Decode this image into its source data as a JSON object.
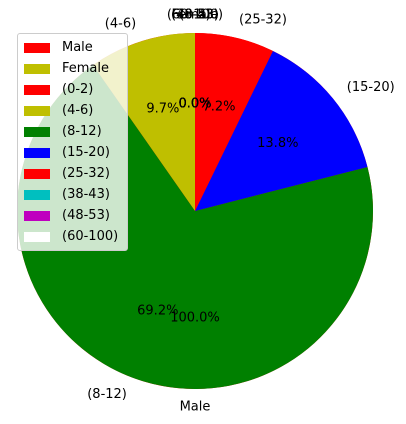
{
  "chart_data": {
    "type": "pie",
    "legend_position": "upper-left",
    "legend": [
      "Male",
      "Female",
      "(0-2)",
      "(4-6)",
      "(8-12)",
      "(15-20)",
      "(25-32)",
      "(38-43)",
      "(48-53)",
      "(60-100)"
    ],
    "colors": {
      "Male": "#ff0000",
      "Female": "#bfbf00",
      "(0-2)": "#ff0000",
      "(4-6)": "#bfbf00",
      "(8-12)": "#008000",
      "(15-20)": "#0000ff",
      "(25-32)": "#ff0000",
      "(38-43)": "#00bfbf",
      "(48-53)": "#bf00bf",
      "(60-100)": "#ffffff"
    },
    "pies": [
      {
        "name": "gender",
        "alpha": 1.0,
        "slices": [
          {
            "label": "Male",
            "value": 100.0,
            "pct_label": "100.0%"
          },
          {
            "label": "Female",
            "value": 0.0,
            "pct_label": "0.0%"
          }
        ]
      },
      {
        "name": "age",
        "alpha": 1.0,
        "slices": [
          {
            "label": "(0-2)",
            "value": 0.0,
            "pct_label": "0.0%"
          },
          {
            "label": "(4-6)",
            "value": 9.7,
            "pct_label": "9.7%"
          },
          {
            "label": "(8-12)",
            "value": 69.2,
            "pct_label": "69.2%"
          },
          {
            "label": "(15-20)",
            "value": 13.8,
            "pct_label": "13.8%"
          },
          {
            "label": "(25-32)",
            "value": 7.2,
            "pct_label": "7.2%"
          },
          {
            "label": "(38-43)",
            "value": 0.0,
            "pct_label": "0.0%"
          },
          {
            "label": "(48-53)",
            "value": 0.0,
            "pct_label": "0.0%"
          },
          {
            "label": "(60-100)",
            "value": 0.0,
            "pct_label": "0.0%"
          }
        ]
      }
    ]
  }
}
